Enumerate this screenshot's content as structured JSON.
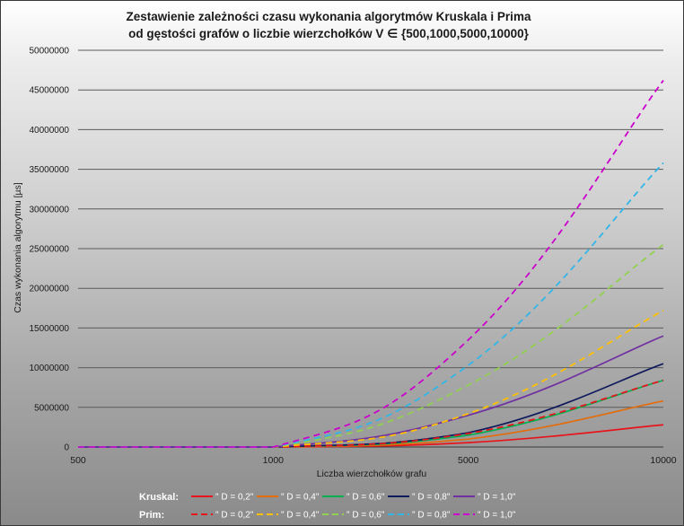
{
  "chart_data": {
    "type": "line",
    "title": "Zestawienie zależności czasu wykonania algorytmów Kruskala i Prima",
    "subtitle": "od gęstości grafów o liczbie wierzchołków V ∈ {500,1000,5000,10000}",
    "xlabel": "Liczba wierzchołków grafu",
    "ylabel": "Czas wykonania algorytmu [µs]",
    "categories": [
      "500",
      "1000",
      "5000",
      "10000"
    ],
    "ylim": [
      0,
      50000000
    ],
    "yticks": [
      "0",
      "5000000",
      "10000000",
      "15000000",
      "20000000",
      "25000000",
      "30000000",
      "35000000",
      "40000000",
      "45000000",
      "50000000"
    ],
    "grid": true,
    "legend_position": "bottom",
    "legend_groups": [
      {
        "label": "Kruskal:",
        "style": "solid"
      },
      {
        "label": "Prim:",
        "style": "dashed"
      }
    ],
    "series": [
      {
        "group": "Kruskal:",
        "name": "\" D = 0,2\"",
        "color": "#e8141b",
        "dashed": false,
        "values": [
          0,
          0,
          550000,
          2800000
        ]
      },
      {
        "group": "Kruskal:",
        "name": "\" D = 0,4\"",
        "color": "#e46c0a",
        "dashed": false,
        "values": [
          0,
          0,
          1000000,
          5800000
        ]
      },
      {
        "group": "Kruskal:",
        "name": "\" D = 0,6\"",
        "color": "#00b050",
        "dashed": false,
        "values": [
          0,
          0,
          1500000,
          8400000
        ]
      },
      {
        "group": "Kruskal:",
        "name": "\" D = 0,8\"",
        "color": "#0f1a5c",
        "dashed": false,
        "values": [
          0,
          0,
          1800000,
          10500000
        ]
      },
      {
        "group": "Kruskal:",
        "name": "\" D = 1,0\"",
        "color": "#7030a0",
        "dashed": false,
        "values": [
          0,
          0,
          4000000,
          14000000
        ]
      },
      {
        "group": "Prim:",
        "name": "\" D = 0,2\"",
        "color": "#e8141b",
        "dashed": true,
        "values": [
          0,
          0,
          1700000,
          8400000
        ]
      },
      {
        "group": "Prim:",
        "name": "\" D = 0,4\"",
        "color": "#ffc000",
        "dashed": true,
        "values": [
          0,
          0,
          4200000,
          17200000
        ]
      },
      {
        "group": "Prim:",
        "name": "\" D = 0,6\"",
        "color": "#92d050",
        "dashed": true,
        "values": [
          0,
          0,
          7800000,
          25500000
        ]
      },
      {
        "group": "Prim:",
        "name": "\" D = 0,8\"",
        "color": "#31b6e8",
        "dashed": true,
        "values": [
          0,
          0,
          10300000,
          35800000
        ]
      },
      {
        "group": "Prim:",
        "name": "\" D = 1,0\"",
        "color": "#cc00cc",
        "dashed": true,
        "values": [
          0,
          0,
          13500000,
          46200000
        ]
      }
    ]
  }
}
